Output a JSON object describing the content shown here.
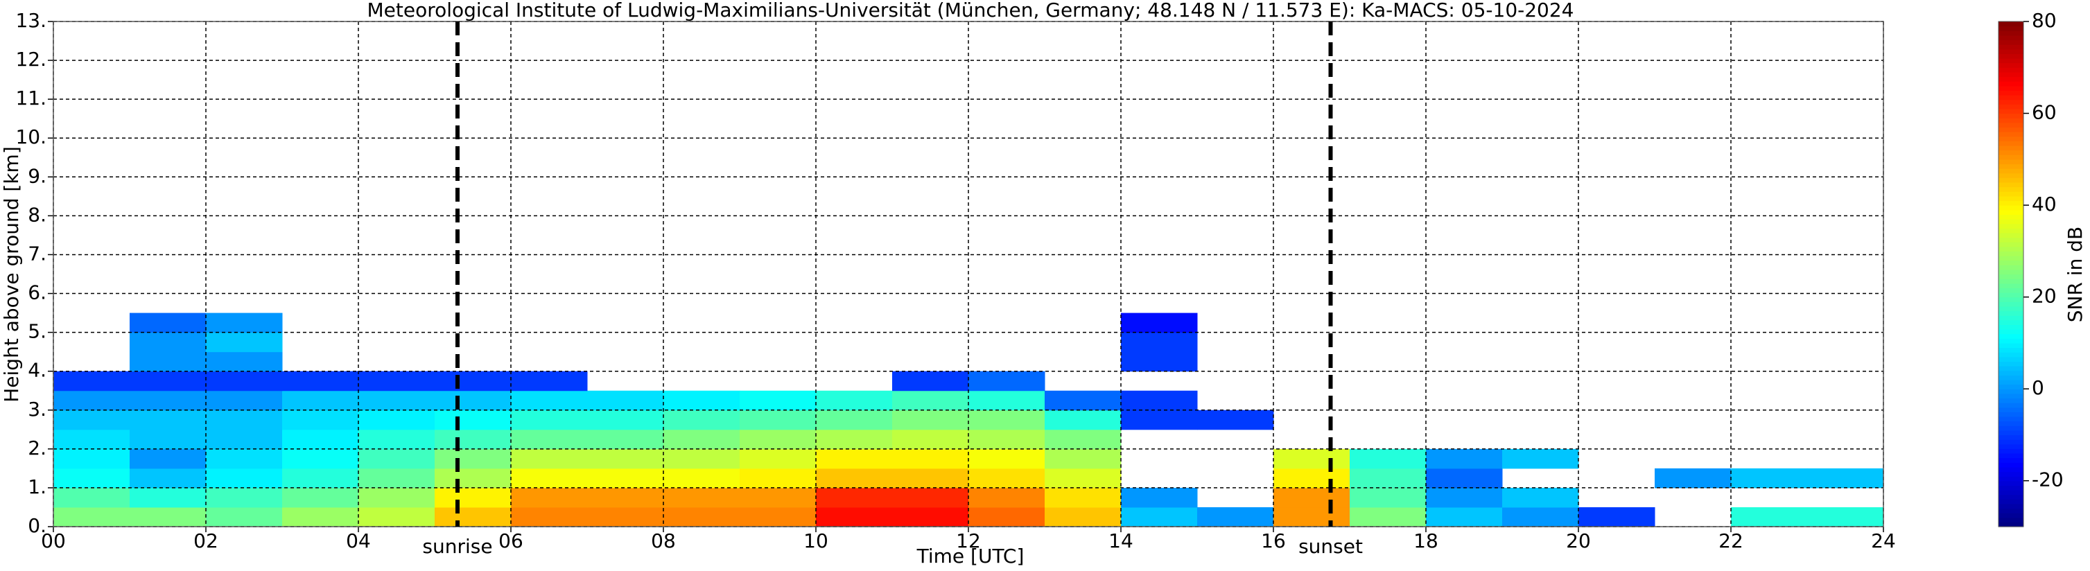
{
  "chart_data": {
    "type": "heatmap",
    "title": "Meteorological Institute of Ludwig-Maximilians-Universität (München, Germany; 48.148 N / 11.573 E):    Ka-MACS: 05-10-2024",
    "xlabel": "Time [UTC]",
    "ylabel": "Height above ground [km]",
    "colorbar_label": "SNR in dB",
    "colormap": "jet",
    "clim": [
      -30,
      80
    ],
    "cticks": [
      -20,
      0,
      20,
      40,
      60,
      80
    ],
    "xlim": [
      0,
      24
    ],
    "ylim": [
      0,
      13
    ],
    "xticks": [
      {
        "value": 0,
        "label": "00"
      },
      {
        "value": 2,
        "label": "02"
      },
      {
        "value": 4,
        "label": "04"
      },
      {
        "value": 6,
        "label": "06"
      },
      {
        "value": 8,
        "label": "08"
      },
      {
        "value": 10,
        "label": "10"
      },
      {
        "value": 12,
        "label": "12"
      },
      {
        "value": 14,
        "label": "14"
      },
      {
        "value": 16,
        "label": "16"
      },
      {
        "value": 18,
        "label": "18"
      },
      {
        "value": 20,
        "label": "20"
      },
      {
        "value": 22,
        "label": "22"
      },
      {
        "value": 24,
        "label": "24"
      }
    ],
    "yticks": [
      {
        "value": 0,
        "label": "0."
      },
      {
        "value": 1,
        "label": "1."
      },
      {
        "value": 2,
        "label": "2."
      },
      {
        "value": 3,
        "label": "3."
      },
      {
        "value": 4,
        "label": "4."
      },
      {
        "value": 5,
        "label": "5."
      },
      {
        "value": 6,
        "label": "6."
      },
      {
        "value": 7,
        "label": "7."
      },
      {
        "value": 8,
        "label": "8."
      },
      {
        "value": 9,
        "label": "9."
      },
      {
        "value": 10,
        "label": "10."
      },
      {
        "value": 11,
        "label": "11."
      },
      {
        "value": 12,
        "label": "12."
      },
      {
        "value": 13,
        "label": "13."
      }
    ],
    "grid": true,
    "annotations": [
      {
        "text": "sunrise",
        "x": 5.3
      },
      {
        "text": "sunset",
        "x": 16.75
      }
    ],
    "time_bins": [
      0,
      1,
      2,
      3,
      4,
      5,
      6,
      7,
      8,
      9,
      10,
      11,
      12,
      13,
      14,
      15,
      16,
      17,
      18,
      19,
      20,
      21,
      22,
      23,
      24
    ],
    "height_bins": [
      0,
      0.5,
      1,
      1.5,
      2,
      2.5,
      3,
      3.5,
      4,
      4.5,
      5,
      5.5
    ],
    "z": [
      [
        25,
        25,
        22,
        28,
        32,
        45,
        52,
        52,
        52,
        52,
        65,
        65,
        55,
        45,
        5,
        0,
        50,
        25,
        5,
        0,
        -10,
        null,
        15,
        15
      ],
      [
        20,
        15,
        18,
        22,
        28,
        40,
        50,
        50,
        50,
        50,
        62,
        62,
        52,
        42,
        0,
        null,
        50,
        20,
        0,
        5,
        null,
        null,
        null,
        null
      ],
      [
        12,
        5,
        10,
        15,
        22,
        30,
        38,
        38,
        38,
        40,
        45,
        45,
        42,
        35,
        null,
        null,
        40,
        18,
        -5,
        null,
        null,
        0,
        5,
        5
      ],
      [
        10,
        0,
        8,
        12,
        18,
        25,
        32,
        32,
        32,
        35,
        40,
        40,
        38,
        30,
        null,
        null,
        35,
        15,
        0,
        5,
        null,
        null,
        null,
        null
      ],
      [
        8,
        5,
        5,
        10,
        15,
        18,
        22,
        22,
        25,
        28,
        30,
        32,
        30,
        25,
        null,
        null,
        null,
        null,
        null,
        null,
        null,
        null,
        null,
        null
      ],
      [
        5,
        5,
        5,
        8,
        10,
        12,
        15,
        15,
        18,
        20,
        22,
        25,
        25,
        15,
        -10,
        -10,
        null,
        null,
        null,
        null,
        null,
        null,
        null,
        null
      ],
      [
        0,
        0,
        0,
        5,
        5,
        5,
        8,
        8,
        10,
        12,
        15,
        18,
        15,
        -5,
        -10,
        null,
        null,
        null,
        null,
        null,
        null,
        null,
        null,
        null
      ],
      [
        -10,
        -10,
        -10,
        -10,
        -10,
        -10,
        -10,
        null,
        null,
        null,
        null,
        -10,
        -5,
        null,
        null,
        null,
        null,
        null,
        null,
        null,
        null,
        null,
        null,
        null
      ],
      [
        null,
        0,
        0,
        null,
        null,
        null,
        null,
        null,
        null,
        null,
        null,
        null,
        null,
        null,
        -10,
        null,
        null,
        null,
        null,
        null,
        null,
        null,
        null,
        null
      ],
      [
        null,
        0,
        5,
        null,
        null,
        null,
        null,
        null,
        null,
        null,
        null,
        null,
        null,
        null,
        -10,
        null,
        null,
        null,
        null,
        null,
        null,
        null,
        null,
        null
      ],
      [
        null,
        -5,
        0,
        null,
        null,
        null,
        null,
        null,
        null,
        null,
        null,
        null,
        null,
        null,
        -15,
        null,
        null,
        null,
        null,
        null,
        null,
        null,
        null,
        null
      ]
    ]
  }
}
